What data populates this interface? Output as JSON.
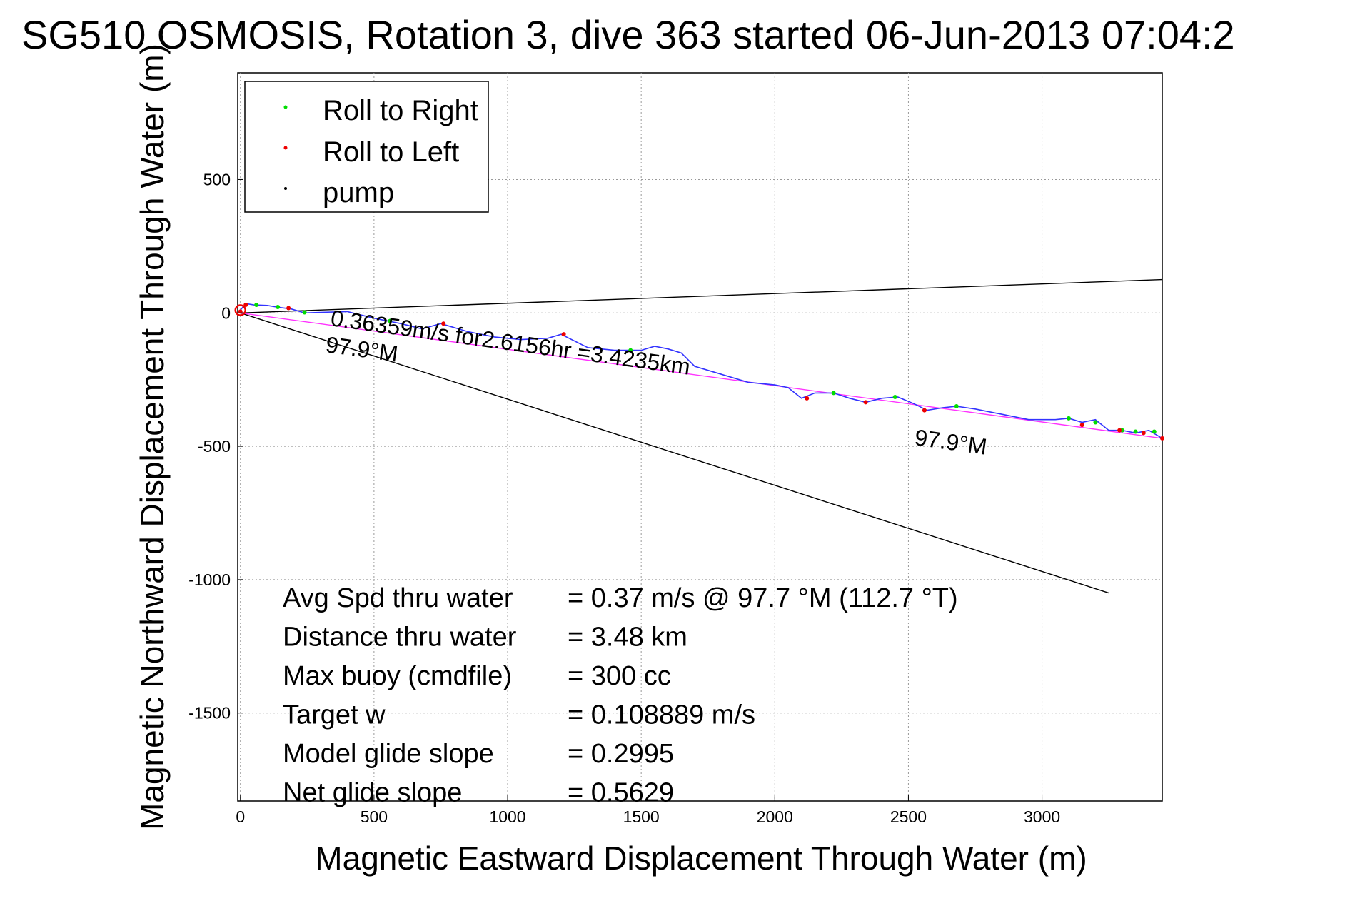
{
  "chart_data": {
    "type": "line",
    "title": "SG510 OSMOSIS, Rotation 3, dive 363 started 06-Jun-2013 07:04:2",
    "xlabel": "Magnetic Eastward Displacement Through Water (m)",
    "ylabel": "Magnetic Northward Displacement Through Water (m)",
    "xlim": [
      -10,
      3450
    ],
    "ylim": [
      -1830,
      900
    ],
    "xticks": [
      0,
      500,
      1000,
      1500,
      2000,
      2500,
      3000
    ],
    "yticks": [
      500,
      0,
      -500,
      -1000,
      -1500
    ],
    "grid": true,
    "legend_placement": "top-left",
    "legend": [
      {
        "label": "Roll to Right",
        "color": "#00dd00"
      },
      {
        "label": "Roll to Left",
        "color": "#ee0000"
      },
      {
        "label": "pump",
        "color": "#000000"
      }
    ],
    "series": [
      {
        "name": "",
        "color": "#3333ff",
        "x": [
          0,
          20,
          50,
          100,
          150,
          190,
          240,
          300,
          400,
          500,
          600,
          680,
          750,
          850,
          950,
          1050,
          1150,
          1200,
          1300,
          1400,
          1500,
          1550,
          1600,
          1650,
          1700,
          1800,
          1900,
          2000,
          2050,
          2100,
          2150,
          2220,
          2280,
          2340,
          2400,
          2460,
          2520,
          2570,
          2630,
          2680,
          2750,
          2850,
          2950,
          3050,
          3100,
          3150,
          3200,
          3250,
          3300,
          3350,
          3400,
          3450
        ],
        "y": [
          10,
          35,
          30,
          28,
          20,
          15,
          0,
          2,
          5,
          -20,
          -40,
          -60,
          -40,
          -70,
          -90,
          -100,
          -95,
          -80,
          -130,
          -140,
          -140,
          -125,
          -135,
          -150,
          -200,
          -230,
          -260,
          -270,
          -280,
          -320,
          -300,
          -300,
          -320,
          -335,
          -320,
          -315,
          -340,
          -365,
          -355,
          -350,
          -360,
          -380,
          -400,
          -400,
          -395,
          -410,
          -400,
          -440,
          -440,
          -450,
          -440,
          -470
        ]
      },
      {
        "name": "",
        "color": "#ff33ff",
        "x": [
          0,
          3450
        ],
        "y": [
          0,
          -470
        ]
      },
      {
        "name": "",
        "color": "#000000",
        "x": [
          0,
          3450
        ],
        "y": [
          0,
          125
        ]
      },
      {
        "name": "",
        "color": "#000000",
        "x": [
          0,
          3250
        ],
        "y": [
          0,
          -1050
        ]
      }
    ],
    "right_roll_points": {
      "x": [
        60,
        140,
        240,
        560,
        1460,
        2220,
        2450,
        2680,
        3100,
        3200,
        3300,
        3350,
        3420
      ],
      "y": [
        30,
        22,
        2,
        -30,
        -140,
        -300,
        -315,
        -350,
        -395,
        -410,
        -440,
        -445,
        -445
      ]
    },
    "left_roll_points": {
      "x": [
        0,
        20,
        180,
        760,
        1210,
        2120,
        2340,
        2560,
        3150,
        3290,
        3380,
        3450
      ],
      "y": [
        5,
        30,
        18,
        -40,
        -80,
        -320,
        -335,
        -365,
        -420,
        -440,
        -450,
        -470
      ]
    }
  },
  "annotations": {
    "speed_label": "0.36359m/s for2.6156hr =3.4235km",
    "heading_label_left": "97.9°M",
    "heading_label_right": "97.9°M"
  },
  "stats": [
    {
      "label": "Avg Spd thru water",
      "value": "=  0.37 m/s @  97.7 °M (112.7 °T)"
    },
    {
      "label": "Distance thru water",
      "value": "=  3.48 km"
    },
    {
      "label": "Max buoy (cmdfile)",
      "value": "= 300 cc"
    },
    {
      "label": "Target w",
      "value": "= 0.108889 m/s"
    },
    {
      "label": "Model glide slope",
      "value": "= 0.2995"
    },
    {
      "label": "Net glide slope",
      "value": "= 0.5629"
    }
  ]
}
